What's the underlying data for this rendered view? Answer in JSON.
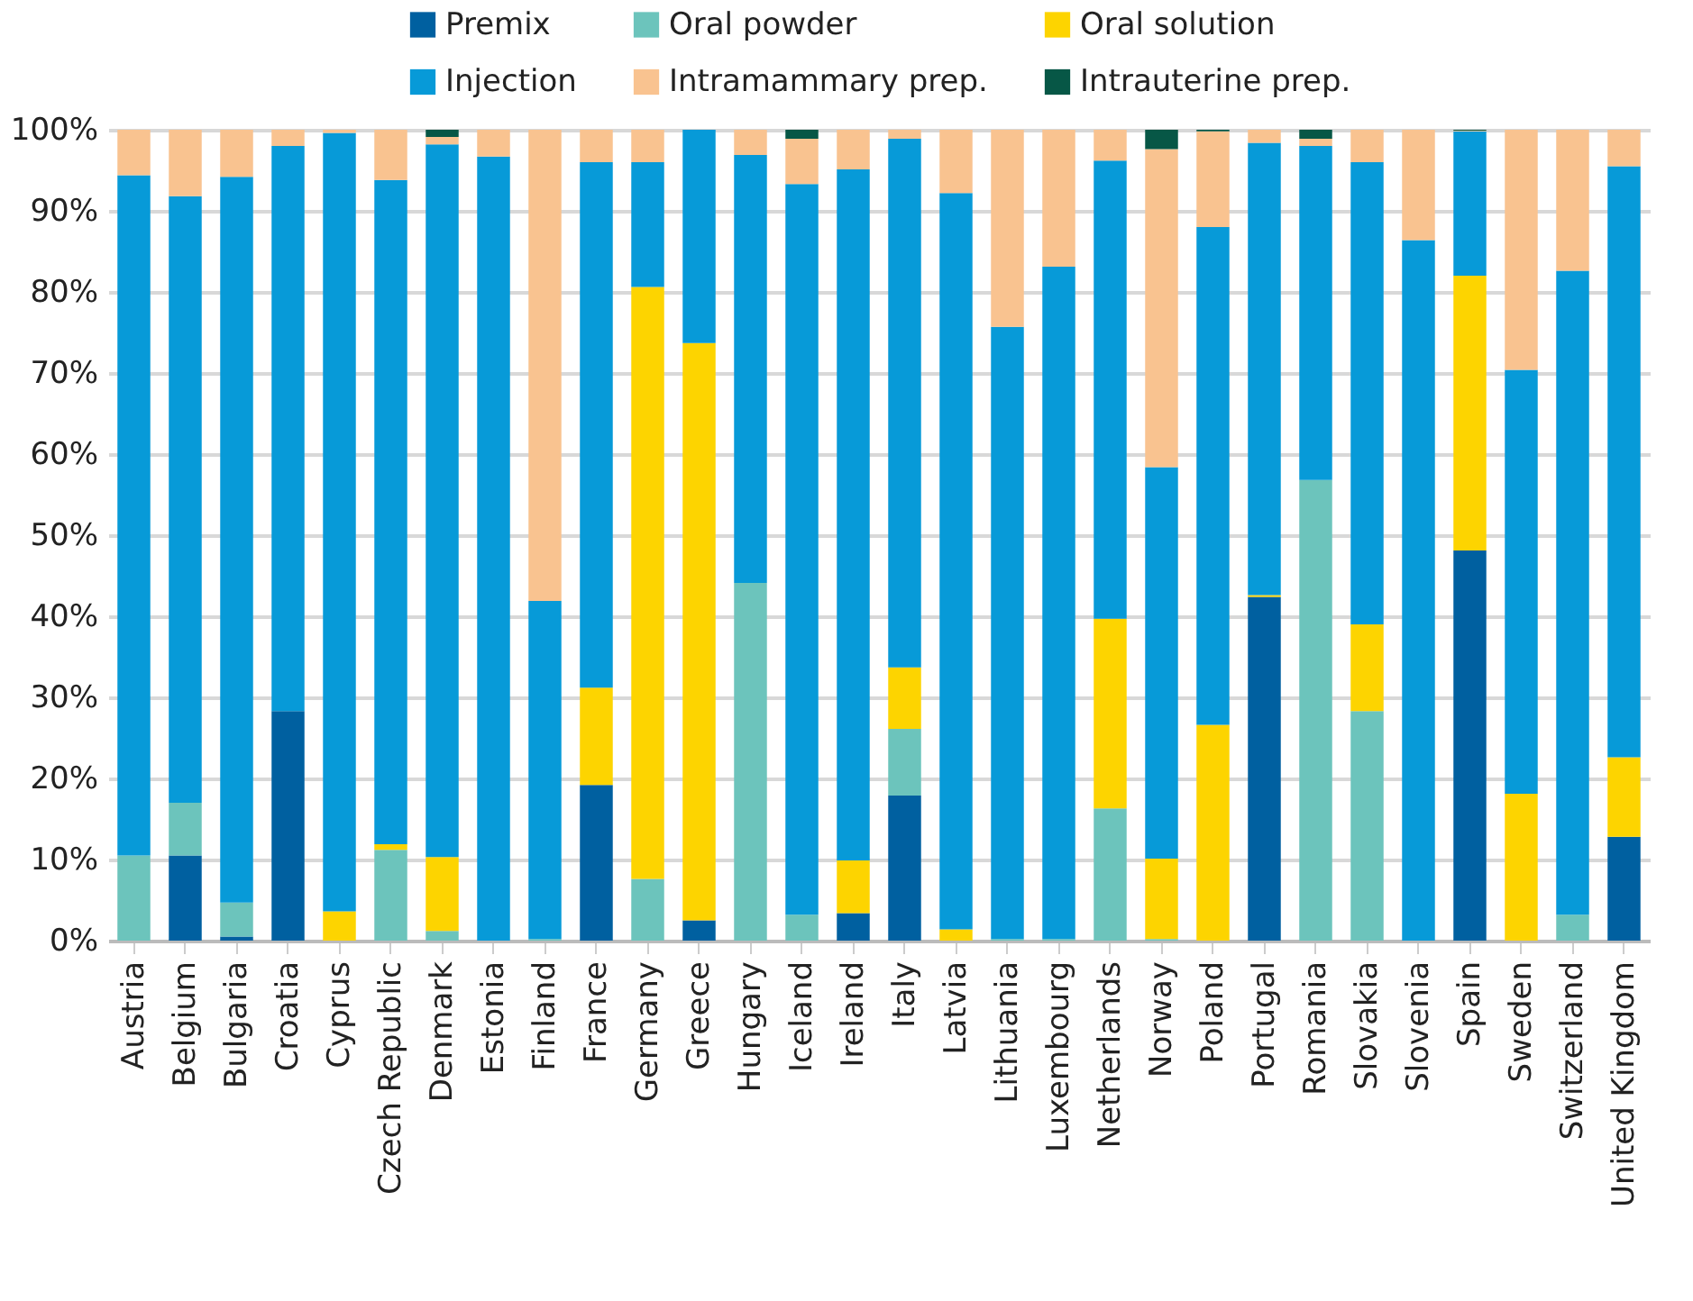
{
  "chart_data": {
    "type": "bar",
    "stacked": true,
    "legend": "top",
    "grid": "y",
    "categories": [
      "Austria",
      "Belgium",
      "Bulgaria",
      "Croatia",
      "Cyprus",
      "Czech Republic",
      "Denmark",
      "Estonia",
      "Finland",
      "France",
      "Germany",
      "Greece",
      "Hungary",
      "Iceland",
      "Ireland",
      "Italy",
      "Latvia",
      "Lithuania",
      "Luxembourg",
      "Netherlands",
      "Norway",
      "Poland",
      "Portugal",
      "Romania",
      "Slovakia",
      "Slovenia",
      "Spain",
      "Sweden",
      "Switzerland",
      "United Kingdom"
    ],
    "ylim": [
      0,
      100
    ],
    "yticks": [
      {
        "value": 0,
        "label": "0%"
      },
      {
        "value": 10,
        "label": "10%"
      },
      {
        "value": 20,
        "label": "20%"
      },
      {
        "value": 30,
        "label": "30%"
      },
      {
        "value": 40,
        "label": "40%"
      },
      {
        "value": 50,
        "label": "50%"
      },
      {
        "value": 60,
        "label": "60%"
      },
      {
        "value": 70,
        "label": "70%"
      },
      {
        "value": 80,
        "label": "80%"
      },
      {
        "value": 90,
        "label": "90%"
      },
      {
        "value": 100,
        "label": "100%"
      }
    ],
    "series": [
      {
        "name": "Premix",
        "color": "#0060a0",
        "values": [
          0,
          10.5,
          0.5,
          28.3,
          0,
          0,
          0,
          0,
          0,
          19.2,
          0,
          2.5,
          0,
          0,
          3.4,
          17.9,
          0,
          0,
          0,
          0,
          0,
          0,
          42.4,
          0,
          0,
          0,
          48.1,
          0,
          0,
          12.8
        ]
      },
      {
        "name": "Oral powder",
        "color": "#6cc4bc",
        "values": [
          10.5,
          6.5,
          4.2,
          0,
          0,
          11.2,
          1.2,
          0,
          0.2,
          0,
          7.6,
          0,
          44.1,
          3.2,
          0,
          8.2,
          0,
          0.2,
          0.2,
          16.3,
          0.2,
          0,
          0,
          56.8,
          28.3,
          0,
          0,
          0,
          3.2,
          0
        ]
      },
      {
        "name": "Oral solution",
        "color": "#fdd400",
        "values": [
          0,
          0,
          0,
          0,
          3.6,
          0.7,
          9.1,
          0,
          0,
          12,
          73,
          71.2,
          0,
          0,
          6.5,
          7.6,
          1.4,
          0,
          0,
          23.4,
          9.9,
          26.6,
          0.2,
          0,
          10.7,
          0,
          33.9,
          18.1,
          0,
          9.8
        ]
      },
      {
        "name": "Injection",
        "color": "#079ad8",
        "values": [
          83.9,
          74.8,
          89.5,
          69.7,
          96,
          81.9,
          87.9,
          96.7,
          41.7,
          64.8,
          15.4,
          26.3,
          52.8,
          90.1,
          85.2,
          65.2,
          90.8,
          75.5,
          82.9,
          56.5,
          48.3,
          61.4,
          55.8,
          41.2,
          57,
          86.4,
          17.8,
          52.3,
          79.4,
          72.9
        ]
      },
      {
        "name": "Intramammary prep.",
        "color": "#f9c390",
        "values": [
          5.6,
          8.2,
          5.8,
          2,
          0.4,
          6.2,
          0.9,
          3.3,
          58.1,
          4,
          4,
          0,
          3.1,
          5.6,
          4.9,
          1.1,
          7.8,
          24.3,
          16.9,
          3.8,
          39.2,
          11.8,
          1.6,
          0.9,
          4,
          13.6,
          0.1,
          29.6,
          17.4,
          4.5
        ]
      },
      {
        "name": "Intrauterine prep.",
        "color": "#075746",
        "values": [
          0,
          0,
          0,
          0,
          0,
          0,
          0.9,
          0,
          0,
          0,
          0,
          0,
          0,
          1.1,
          0,
          0,
          0,
          0,
          0,
          0,
          2.4,
          0.2,
          0,
          1.1,
          0,
          0,
          0.1,
          0,
          0,
          0
        ]
      }
    ]
  }
}
